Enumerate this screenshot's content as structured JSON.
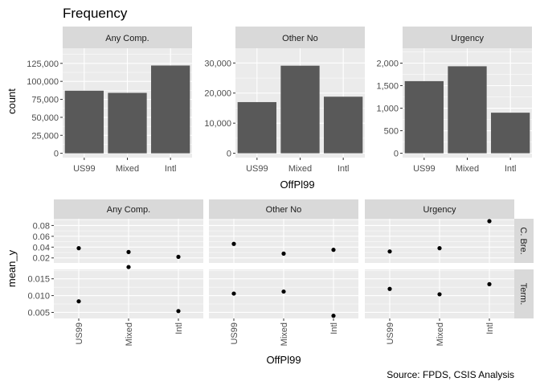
{
  "title": "Frequency",
  "source": "Source: FPDS, CSIS Analysis",
  "top_plot": {
    "ylabel": "count",
    "xlabel": "OffPl99"
  },
  "bottom_plot": {
    "ylabel": "mean_y",
    "xlabel": "OffPl99"
  },
  "colors": {
    "panel": "#ebebeb",
    "strip": "#d9d9d9",
    "bar": "#595959",
    "point": "#000000",
    "grid": "#ffffff",
    "text": "#4d4d4d"
  },
  "chart_data": [
    {
      "type": "bar",
      "facet_variable": "column",
      "categories": [
        "US99",
        "Mixed",
        "Intl"
      ],
      "panels": [
        {
          "strip": "Any Comp.",
          "values": [
            87000,
            84000,
            122000
          ],
          "ylim": [
            -6000,
            146000
          ],
          "yticks": [
            0,
            25000,
            50000,
            75000,
            100000,
            125000
          ],
          "ytick_labels": [
            "0",
            "25,000",
            "50,000",
            "75,000",
            "100,000",
            "125,000"
          ]
        },
        {
          "strip": "Other No",
          "values": [
            17000,
            29100,
            18800
          ],
          "ylim": [
            -1450,
            34900
          ],
          "yticks": [
            0,
            10000,
            20000,
            30000
          ],
          "ytick_labels": [
            "0",
            "10,000",
            "20,000",
            "30,000"
          ]
        },
        {
          "strip": "Urgency",
          "values": [
            1600,
            1930,
            900
          ],
          "ylim": [
            -97,
            2330
          ],
          "yticks": [
            0,
            500,
            1000,
            1500,
            2000
          ],
          "ytick_labels": [
            "0",
            "500",
            "1,000",
            "1,500",
            "2,000"
          ]
        }
      ]
    },
    {
      "type": "scatter",
      "facet_variable": "column by row",
      "categories": [
        "US99",
        "Mixed",
        "Intl"
      ],
      "columns": [
        "Any Comp.",
        "Other No",
        "Urgency"
      ],
      "rows": [
        {
          "strip": "C. Bre.",
          "ylim": [
            0.0107,
            0.0925
          ],
          "yticks": [
            0.02,
            0.04,
            0.06,
            0.08
          ],
          "ytick_labels": [
            "0.02",
            "0.04",
            "0.06",
            "0.08"
          ],
          "values": [
            [
              0.038,
              0.031,
              0.022
            ],
            [
              0.046,
              0.028,
              0.035
            ],
            [
              0.032,
              0.038,
              0.088
            ]
          ]
        },
        {
          "strip": "Term.",
          "ylim": [
            0.0032,
            0.0178
          ],
          "yticks": [
            0.005,
            0.01,
            0.015
          ],
          "ytick_labels": [
            "0.005",
            "0.010",
            "0.015"
          ],
          "values": [
            [
              0.0083,
              0.0185,
              0.0054
            ],
            [
              0.0106,
              0.0112,
              0.004
            ],
            [
              0.012,
              0.0104,
              0.0134
            ]
          ]
        }
      ]
    }
  ]
}
